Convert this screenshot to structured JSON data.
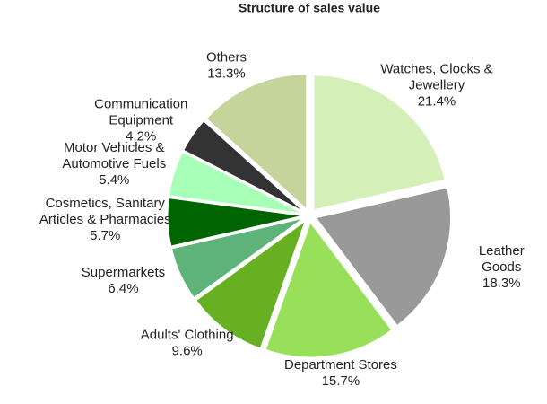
{
  "chart_data": {
    "type": "pie",
    "title": "Structure of sales value",
    "categories": [
      "Watches, Clocks &\nJewellery",
      "Leather\nGoods",
      "Department Stores",
      "Adults' Clothing",
      "Supermarkets",
      "Cosmetics, Sanitary\nArticles & Pharmacies",
      "Motor Vehicles &\nAutomotive Fuels",
      "Communication\nEquipment",
      "Others"
    ],
    "values": [
      21.4,
      18.3,
      15.7,
      9.6,
      6.4,
      5.7,
      5.4,
      4.2,
      13.3
    ],
    "value_labels": [
      "21.4%",
      "18.3%",
      "15.7%",
      "9.6%",
      "6.4%",
      "5.7%",
      "5.4%",
      "4.2%",
      "13.3%"
    ],
    "colors": [
      "#d4f0b8",
      "#999999",
      "#99e05a",
      "#66b022",
      "#5db37a",
      "#006400",
      "#a8ffb8",
      "#333333",
      "#c4d49a"
    ]
  }
}
